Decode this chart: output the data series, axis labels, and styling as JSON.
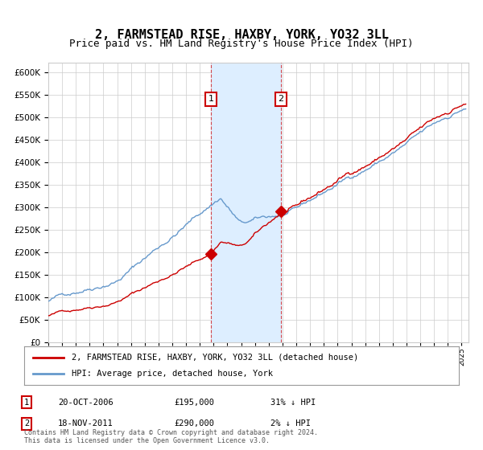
{
  "title": "2, FARMSTEAD RISE, HAXBY, YORK, YO32 3LL",
  "subtitle": "Price paid vs. HM Land Registry's House Price Index (HPI)",
  "title_fontsize": 11,
  "subtitle_fontsize": 9,
  "sale1_date_num": 2006.8,
  "sale1_price": 195000,
  "sale2_date_num": 2011.88,
  "sale2_price": 290000,
  "sale1_label": "20-OCT-2006",
  "sale2_label": "18-NOV-2011",
  "sale1_hpi_pct": "31% ↓ HPI",
  "sale2_hpi_pct": "2% ↓ HPI",
  "legend_label_red": "2, FARMSTEAD RISE, HAXBY, YORK, YO32 3LL (detached house)",
  "legend_label_blue": "HPI: Average price, detached house, York",
  "footer": "Contains HM Land Registry data © Crown copyright and database right 2024.\nThis data is licensed under the Open Government Licence v3.0.",
  "red_color": "#cc0000",
  "blue_color": "#6699cc",
  "bg_color": "#ffffff",
  "grid_color": "#cccccc",
  "shade_color": "#ddeeff",
  "ylim": [
    0,
    620000
  ],
  "xlim_start": 1995.0,
  "xlim_end": 2025.5
}
